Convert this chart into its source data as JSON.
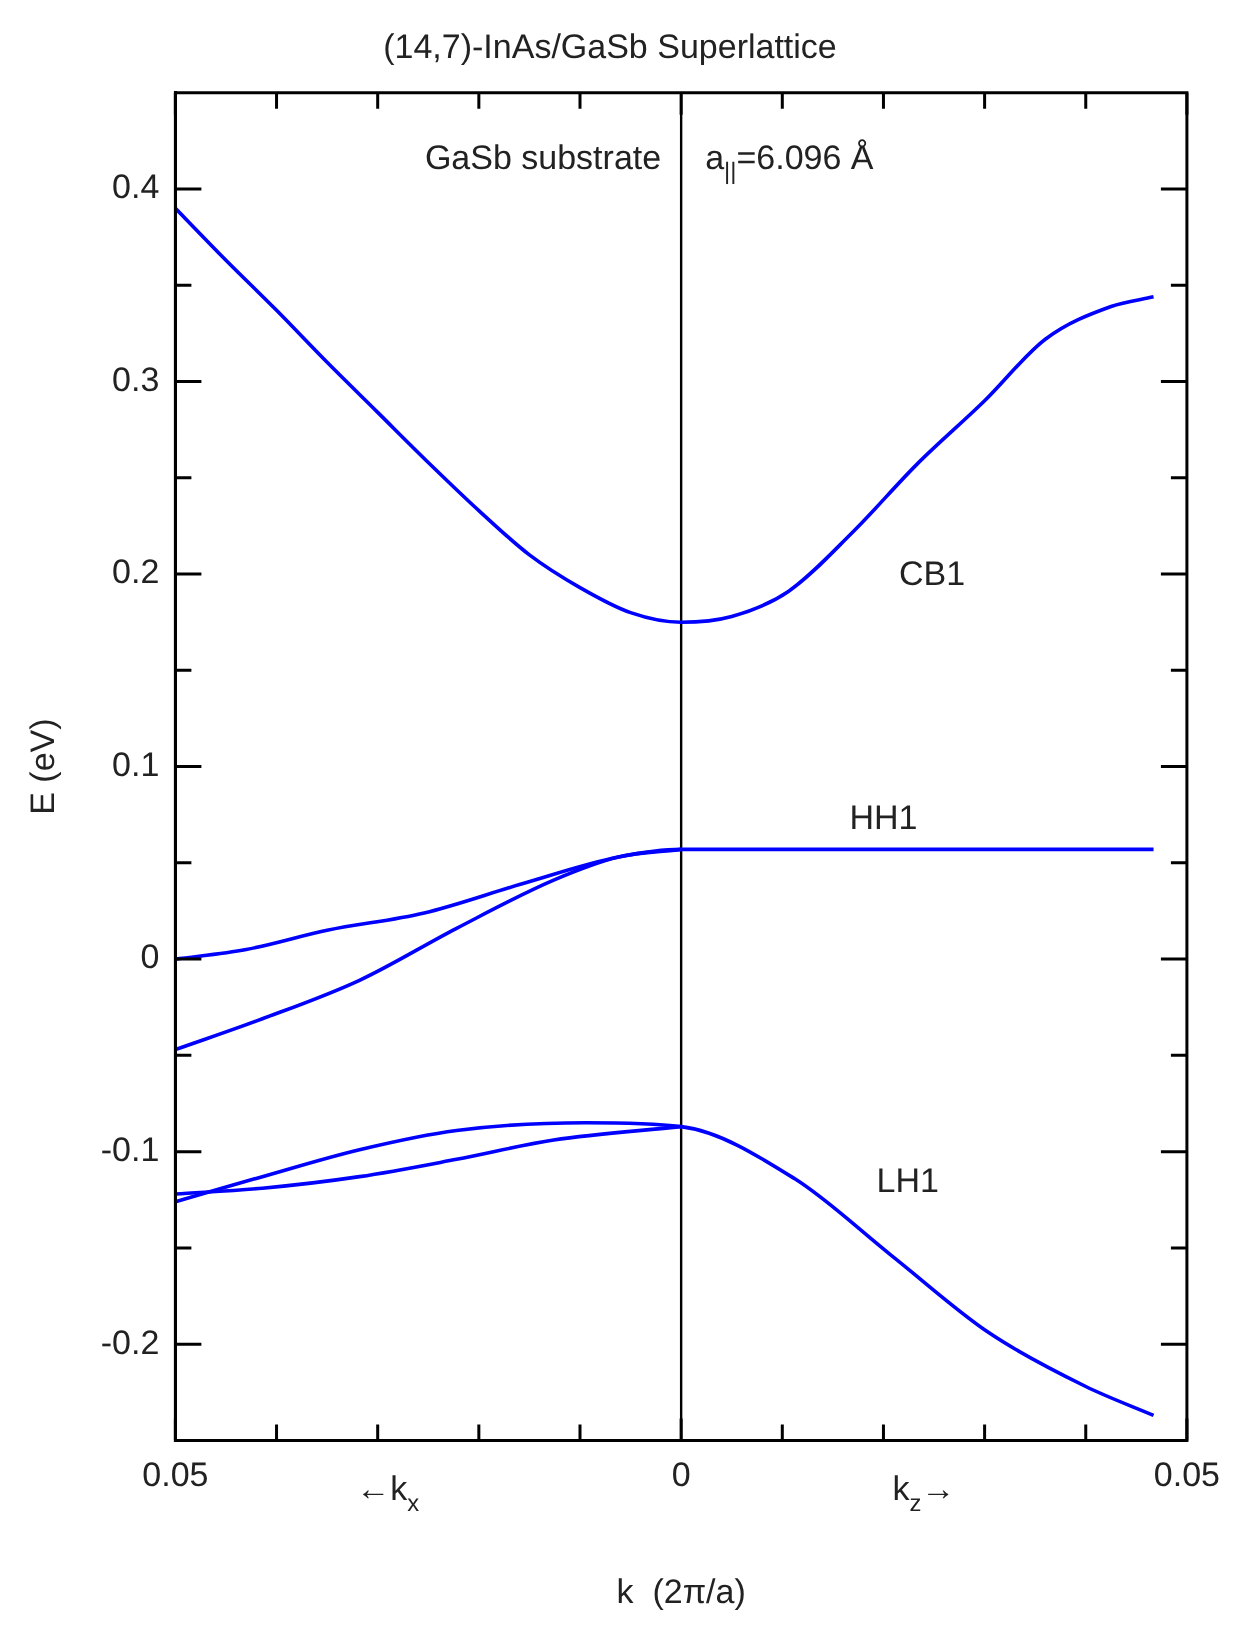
{
  "chart_data": {
    "type": "line",
    "title": "(14,7)-InAs/GaSb Superlattice",
    "xlabel": "k  (2π/a)",
    "ylabel": "E (eV)",
    "series": [
      {
        "color": "#0000ff",
        "x": [
          -0.05,
          -0.045,
          -0.04,
          -0.035,
          -0.03,
          -0.025,
          -0.02,
          -0.015,
          -0.01,
          -0.005,
          0,
          0.005,
          0.0106,
          0.017,
          0.0233,
          0.03,
          0.036,
          0.0425,
          0.0467
        ],
        "values": [
          0.39,
          0.363,
          0.337,
          0.31,
          0.284,
          0.258,
          0.233,
          0.21,
          0.193,
          0.18,
          0.175,
          0.178,
          0.191,
          0.222,
          0.257,
          0.29,
          0.322,
          0.339,
          0.344
        ]
      },
      {
        "color": "#0000ff",
        "x": [
          -0.05,
          -0.043,
          -0.035,
          -0.0254,
          -0.0158,
          -0.0062,
          0,
          0.01,
          0.02,
          0.03,
          0.04,
          0.0467
        ],
        "values": [
          0.0,
          0.005,
          0.015,
          0.024,
          0.039,
          0.053,
          0.057,
          0.057,
          0.057,
          0.057,
          0.057,
          0.057
        ]
      },
      {
        "color": "#0000ff",
        "x": [
          -0.05,
          -0.0414,
          -0.0318,
          -0.0222,
          -0.0126,
          -0.0062,
          0
        ],
        "values": [
          -0.047,
          -0.031,
          -0.011,
          0.016,
          0.041,
          0.053,
          0.057
        ]
      },
      {
        "color": "#0000ff",
        "x": [
          -0.05,
          -0.0414,
          -0.0318,
          -0.0222,
          -0.0094,
          0,
          0.0112,
          0.0208,
          0.0304,
          0.04,
          0.0467
        ],
        "values": [
          -0.126,
          -0.113,
          -0.099,
          -0.089,
          -0.085,
          -0.087,
          -0.114,
          -0.154,
          -0.194,
          -0.222,
          -0.237
        ]
      },
      {
        "color": "#0000ff",
        "x": [
          -0.05,
          -0.0414,
          -0.0318,
          -0.0222,
          -0.0126,
          0
        ],
        "values": [
          -0.122,
          -0.119,
          -0.113,
          -0.104,
          -0.094,
          -0.087
        ]
      }
    ],
    "xlim": [
      -0.05,
      0.05
    ],
    "xticks": [
      {
        "value": -0.05,
        "label": "0.05"
      },
      {
        "value": -0.04,
        "label": null
      },
      {
        "value": -0.03,
        "label": null
      },
      {
        "value": -0.02,
        "label": null
      },
      {
        "value": -0.01,
        "label": null
      },
      0,
      {
        "value": 0.01,
        "label": null
      },
      {
        "value": 0.02,
        "label": null
      },
      {
        "value": 0.03,
        "label": null
      },
      {
        "value": 0.04,
        "label": null
      },
      {
        "value": 0.05,
        "label": "0.05"
      }
    ],
    "ylim": [
      -0.25,
      0.45
    ],
    "yticks": [
      -0.2,
      {
        "value": -0.15,
        "label": null
      },
      -0.1,
      {
        "value": -0.05,
        "label": null
      },
      0,
      {
        "value": 0.05,
        "label": null
      },
      0.1,
      {
        "value": 0.15,
        "label": null
      },
      0.2,
      {
        "value": 0.25,
        "label": null
      },
      0.3,
      {
        "value": 0.35,
        "label": null
      },
      0.4
    ],
    "ref_lines": [
      {
        "axis": "x",
        "value": 0,
        "color": "#000000"
      }
    ],
    "annotations": [
      "GaSb substrate",
      "a$_{||}$=6.096 Å",
      "CB1",
      "HH1",
      "LH1",
      "←k$_{x}$",
      "k$_{z}$→"
    ],
    "grid": false,
    "legend": false,
    "marker": "none",
    "line_style": "solid"
  }
}
